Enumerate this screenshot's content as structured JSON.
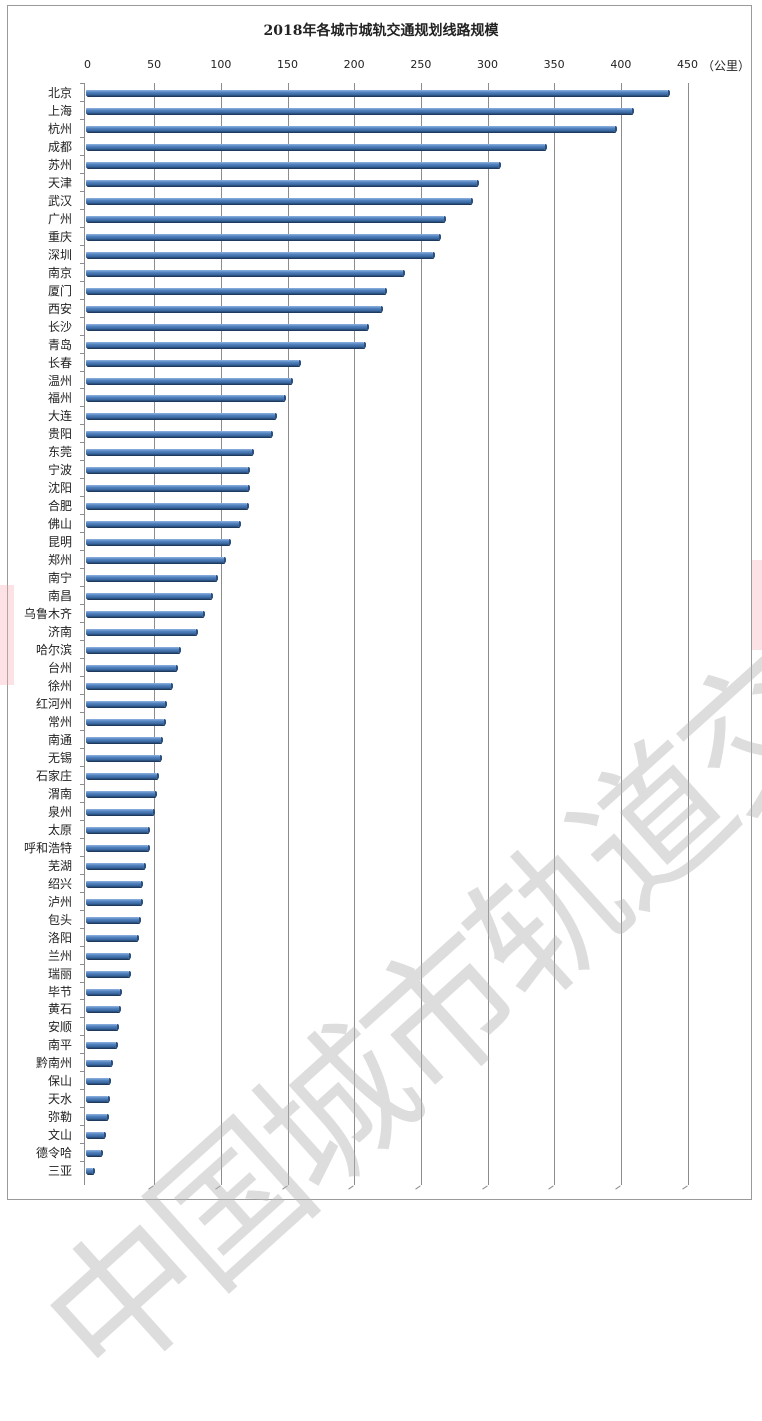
{
  "chart_data": {
    "type": "bar",
    "orientation": "horizontal",
    "title": "2018年各城市城轨交通规划线路规模",
    "xlabel": "",
    "unit": "（公里）",
    "ylabel": "",
    "xlim": [
      0,
      450
    ],
    "x_ticks": [
      0,
      50,
      100,
      150,
      200,
      250,
      300,
      350,
      400,
      450
    ],
    "grid": true,
    "legend": null,
    "categories": [
      "北京",
      "上海",
      "杭州",
      "成都",
      "苏州",
      "天津",
      "武汉",
      "广州",
      "重庆",
      "深圳",
      "南京",
      "厦门",
      "西安",
      "长沙",
      "青岛",
      "长春",
      "温州",
      "福州",
      "大连",
      "贵阳",
      "东莞",
      "宁波",
      "沈阳",
      "合肥",
      "佛山",
      "昆明",
      "郑州",
      "南宁",
      "南昌",
      "乌鲁木齐",
      "济南",
      "哈尔滨",
      "台州",
      "徐州",
      "红河州",
      "常州",
      "南通",
      "无锡",
      "石家庄",
      "渭南",
      "泉州",
      "太原",
      "呼和浩特",
      "芜湖",
      "绍兴",
      "泸州",
      "包头",
      "洛阳",
      "兰州",
      "瑞丽",
      "毕节",
      "黄石",
      "安顺",
      "南平",
      "黔南州",
      "保山",
      "天水",
      "弥勒",
      "文山",
      "德令哈",
      "三亚"
    ],
    "values": [
      438,
      411,
      398,
      346,
      311,
      295,
      290,
      270,
      266,
      262,
      239,
      226,
      223,
      212,
      210,
      161,
      155,
      150,
      143,
      140,
      126,
      123,
      123,
      122,
      116,
      109,
      105,
      99,
      95,
      89,
      84,
      71,
      69,
      65,
      61,
      60,
      58,
      57,
      55,
      53,
      52,
      48,
      48,
      45,
      43,
      43,
      41,
      40,
      34,
      34,
      27,
      26,
      25,
      24,
      20,
      19,
      18,
      17,
      15,
      13,
      7
    ],
    "watermark": "中国城市轨道交通协会"
  }
}
